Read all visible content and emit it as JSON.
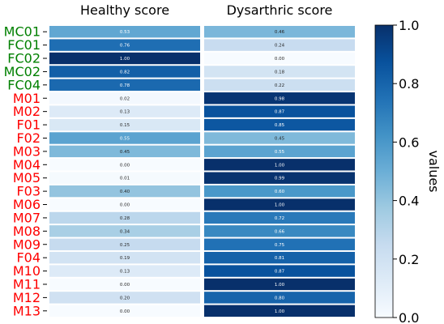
{
  "chart_data": {
    "type": "heatmap",
    "columns": [
      "Healthy score",
      "Dysarthric score"
    ],
    "rows": [
      {
        "label": "MC01",
        "group": "healthy",
        "values": [
          0.53,
          0.46
        ]
      },
      {
        "label": "FC01",
        "group": "healthy",
        "values": [
          0.76,
          0.24
        ]
      },
      {
        "label": "FC02",
        "group": "healthy",
        "values": [
          1.0,
          0.0
        ]
      },
      {
        "label": "MC02",
        "group": "healthy",
        "values": [
          0.82,
          0.18
        ]
      },
      {
        "label": "FC04",
        "group": "healthy",
        "values": [
          0.78,
          0.22
        ]
      },
      {
        "label": "M01",
        "group": "dysarthric",
        "values": [
          0.02,
          0.98
        ]
      },
      {
        "label": "M02",
        "group": "dysarthric",
        "values": [
          0.13,
          0.87
        ]
      },
      {
        "label": "F01",
        "group": "dysarthric",
        "values": [
          0.15,
          0.85
        ]
      },
      {
        "label": "F02",
        "group": "dysarthric",
        "values": [
          0.55,
          0.45
        ]
      },
      {
        "label": "M03",
        "group": "dysarthric",
        "values": [
          0.45,
          0.55
        ]
      },
      {
        "label": "M04",
        "group": "dysarthric",
        "values": [
          0.0,
          1.0
        ]
      },
      {
        "label": "M05",
        "group": "dysarthric",
        "values": [
          0.01,
          0.99
        ]
      },
      {
        "label": "F03",
        "group": "dysarthric",
        "values": [
          0.4,
          0.6
        ]
      },
      {
        "label": "M06",
        "group": "dysarthric",
        "values": [
          0.0,
          1.0
        ]
      },
      {
        "label": "M07",
        "group": "dysarthric",
        "values": [
          0.28,
          0.72
        ]
      },
      {
        "label": "M08",
        "group": "dysarthric",
        "values": [
          0.34,
          0.66
        ]
      },
      {
        "label": "M09",
        "group": "dysarthric",
        "values": [
          0.25,
          0.75
        ]
      },
      {
        "label": "F04",
        "group": "dysarthric",
        "values": [
          0.19,
          0.81
        ]
      },
      {
        "label": "M10",
        "group": "dysarthric",
        "values": [
          0.13,
          0.87
        ]
      },
      {
        "label": "M11",
        "group": "dysarthric",
        "values": [
          0.0,
          1.0
        ]
      },
      {
        "label": "M12",
        "group": "dysarthric",
        "values": [
          0.2,
          0.8
        ]
      },
      {
        "label": "M13",
        "group": "dysarthric",
        "values": [
          0.0,
          1.0
        ]
      }
    ],
    "colorscale": "Blues",
    "vmin": 0.0,
    "vmax": 1.0,
    "colorbar": {
      "label": "values",
      "ticks": [
        "0.0",
        "0.2",
        "0.4",
        "0.6",
        "0.8",
        "1.0"
      ],
      "tick_values": [
        0.0,
        0.2,
        0.4,
        0.6,
        0.8,
        1.0
      ]
    },
    "group_colors": {
      "healthy": "#008000",
      "dysarthric": "#ff0000"
    }
  }
}
